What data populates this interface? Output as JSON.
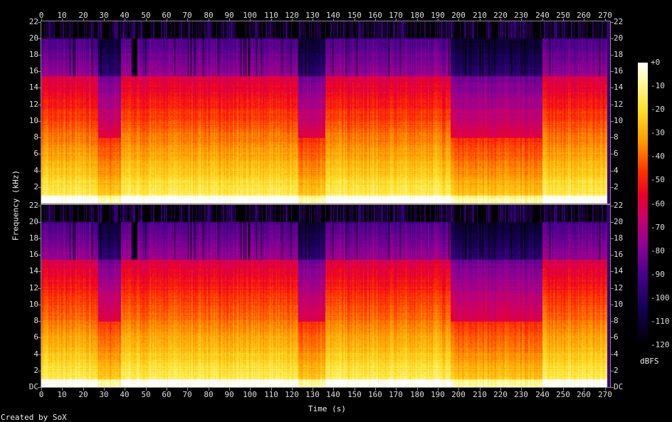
{
  "chart_data": {
    "type": "heatmap",
    "title": "",
    "xlabel": "Time (s)",
    "ylabel": "Frequency (kHz)",
    "x_ticks": [
      0,
      10,
      20,
      30,
      40,
      50,
      60,
      70,
      80,
      90,
      100,
      110,
      120,
      130,
      140,
      150,
      160,
      170,
      180,
      190,
      200,
      210,
      220,
      230,
      240,
      250,
      260,
      270
    ],
    "xlim": [
      0,
      272.5
    ],
    "channels": [
      {
        "y_ticks": [
          "22",
          "20",
          "18",
          "16",
          "14",
          "12",
          "10",
          "8",
          "6",
          "4",
          "2"
        ]
      },
      {
        "y_ticks": [
          "22",
          "20",
          "18",
          "16",
          "14",
          "12",
          "10",
          "8",
          "6",
          "4",
          "2",
          "DC"
        ]
      }
    ],
    "ylim_khz": [
      0,
      22.05
    ],
    "colorbar": {
      "label": "dBFS",
      "range": [
        -120,
        0
      ],
      "ticks": [
        "+0",
        "-10",
        "-20",
        "-30",
        "-40",
        "-50",
        "-60",
        "-70",
        "-80",
        "-90",
        "-100",
        "-110",
        "-120"
      ],
      "colors": [
        "#000000",
        "#1a0050",
        "#5a0090",
        "#a00090",
        "#e00040",
        "#ff3000",
        "#ff9000",
        "#ffe020",
        "#ffffff"
      ]
    },
    "observations": {
      "lowpass_cutoff_khz": 20,
      "secondary_shelf_khz": 15.5
    }
  },
  "footer": {
    "credit": "Created by SoX"
  }
}
